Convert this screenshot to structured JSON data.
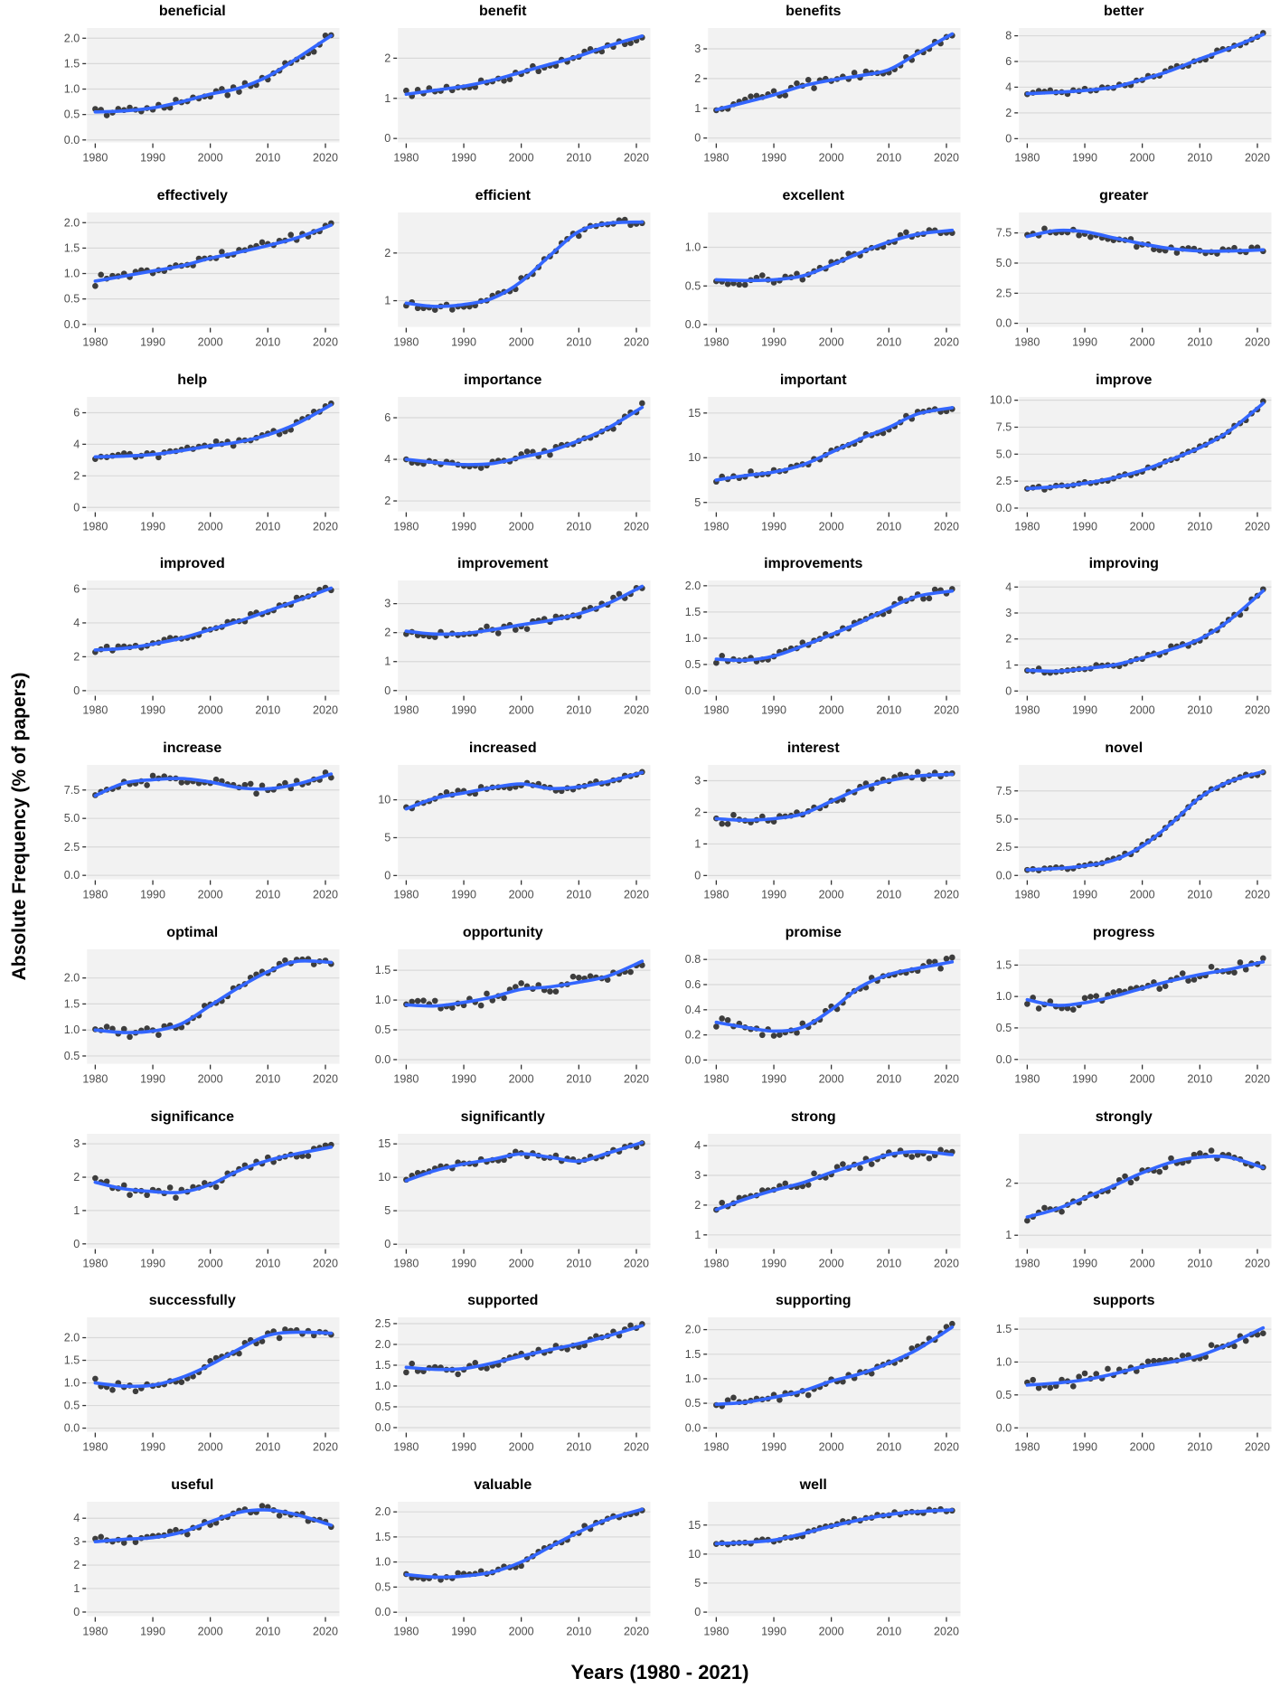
{
  "figure": {
    "ylabel": "Absolute Frequency (% of papers)",
    "xlabel": "Years (1980 - 2021)"
  },
  "style": {
    "point_color": "#2e2e2e",
    "line_color": "#3366FF",
    "panel_bg": "#f2f2f2",
    "grid_color": "#d9d9d9",
    "tick_label_color": "#4d4d4d",
    "tick_mark_color": "#333333"
  },
  "axis": {
    "x_domain": [
      1980,
      2021
    ],
    "x_ticks": [
      1980,
      1990,
      2000,
      2010,
      2020
    ],
    "trend_years": [
      1980,
      1985,
      1990,
      1995,
      2000,
      2005,
      2010,
      2015,
      2021
    ],
    "grid": "horizontal-major",
    "legend": "none"
  },
  "chart_data": [
    {
      "type": "scatter",
      "smoother": "loess",
      "title": "beneficial",
      "ylim": [
        -0.05,
        2.2
      ],
      "yticks": [
        0,
        0.5,
        1,
        1.5,
        2
      ],
      "ytick_labels": [
        "0.0",
        "0.5",
        "1.0",
        "1.5",
        "2.0"
      ],
      "trend": [
        0.55,
        0.57,
        0.63,
        0.75,
        0.9,
        1.02,
        1.25,
        1.6,
        2.05
      ],
      "noise": 0.08
    },
    {
      "type": "scatter",
      "smoother": "loess",
      "title": "benefit",
      "ylim": [
        -0.1,
        2.75
      ],
      "yticks": [
        0,
        1,
        2
      ],
      "ytick_labels": [
        "0",
        "1",
        "2"
      ],
      "trend": [
        1.1,
        1.2,
        1.3,
        1.45,
        1.65,
        1.85,
        2.05,
        2.3,
        2.55
      ],
      "noise": 0.1
    },
    {
      "type": "scatter",
      "smoother": "loess",
      "title": "benefits",
      "ylim": [
        -0.15,
        3.7
      ],
      "yticks": [
        0,
        1,
        2,
        3
      ],
      "ytick_labels": [
        "0",
        "1",
        "2",
        "3"
      ],
      "trend": [
        0.95,
        1.2,
        1.45,
        1.75,
        1.95,
        2.1,
        2.3,
        2.85,
        3.5
      ],
      "noise": 0.13
    },
    {
      "type": "scatter",
      "smoother": "loess",
      "title": "better",
      "ylim": [
        -0.3,
        8.6
      ],
      "yticks": [
        0,
        2,
        4,
        6,
        8
      ],
      "ytick_labels": [
        "0",
        "2",
        "4",
        "6",
        "8"
      ],
      "trend": [
        3.5,
        3.6,
        3.75,
        4.0,
        4.6,
        5.3,
        6.2,
        7.0,
        8.1
      ],
      "noise": 0.2
    },
    {
      "type": "scatter",
      "smoother": "loess",
      "title": "effectively",
      "ylim": [
        -0.05,
        2.2
      ],
      "yticks": [
        0,
        0.5,
        1,
        1.5,
        2
      ],
      "ytick_labels": [
        "0.0",
        "0.5",
        "1.0",
        "1.5",
        "2.0"
      ],
      "trend": [
        0.85,
        0.95,
        1.05,
        1.15,
        1.3,
        1.42,
        1.55,
        1.7,
        1.95
      ],
      "noise": 0.08
    },
    {
      "type": "scatter",
      "smoother": "loess",
      "title": "efficient",
      "ylim": [
        0.45,
        2.85
      ],
      "yticks": [
        1,
        2
      ],
      "ytick_labels": [
        "1",
        "2"
      ],
      "trend": [
        0.95,
        0.88,
        0.92,
        1.05,
        1.4,
        1.95,
        2.45,
        2.62,
        2.65
      ],
      "noise": 0.08
    },
    {
      "type": "scatter",
      "smoother": "loess",
      "title": "excellent",
      "ylim": [
        -0.03,
        1.45
      ],
      "yticks": [
        0,
        0.5,
        1
      ],
      "ytick_labels": [
        "0.0",
        "0.5",
        "1.0"
      ],
      "trend": [
        0.58,
        0.57,
        0.58,
        0.63,
        0.77,
        0.93,
        1.07,
        1.17,
        1.22
      ],
      "noise": 0.055
    },
    {
      "type": "scatter",
      "smoother": "loess",
      "title": "greater",
      "ylim": [
        -0.3,
        9.2
      ],
      "yticks": [
        0,
        2.5,
        5,
        7.5
      ],
      "ytick_labels": [
        "0.0",
        "2.5",
        "5.0",
        "7.5"
      ],
      "trend": [
        7.2,
        7.7,
        7.6,
        7.1,
        6.6,
        6.2,
        6.0,
        6.0,
        6.1
      ],
      "noise": 0.3
    },
    {
      "type": "scatter",
      "smoother": "loess",
      "title": "help",
      "ylim": [
        -0.25,
        7.0
      ],
      "yticks": [
        0,
        2,
        4,
        6
      ],
      "ytick_labels": [
        "0",
        "2",
        "4",
        "6"
      ],
      "trend": [
        3.2,
        3.25,
        3.35,
        3.6,
        3.9,
        4.15,
        4.6,
        5.3,
        6.5
      ],
      "noise": 0.2
    },
    {
      "type": "scatter",
      "smoother": "loess",
      "title": "importance",
      "ylim": [
        1.5,
        7.0
      ],
      "yticks": [
        2,
        4,
        6
      ],
      "ytick_labels": [
        "2",
        "4",
        "6"
      ],
      "trend": [
        4.0,
        3.85,
        3.75,
        3.8,
        4.1,
        4.4,
        4.9,
        5.5,
        6.5
      ],
      "noise": 0.16
    },
    {
      "type": "scatter",
      "smoother": "loess",
      "title": "important",
      "ylim": [
        4.0,
        16.8
      ],
      "yticks": [
        5,
        10,
        15
      ],
      "ytick_labels": [
        "5",
        "10",
        "15"
      ],
      "trend": [
        7.5,
        8.0,
        8.4,
        9.2,
        10.6,
        12.1,
        13.4,
        14.9,
        15.6
      ],
      "noise": 0.3
    },
    {
      "type": "scatter",
      "smoother": "loess",
      "title": "improve",
      "ylim": [
        -0.3,
        10.3
      ],
      "yticks": [
        0,
        2.5,
        5,
        7.5,
        10
      ],
      "ytick_labels": [
        "0.0",
        "2.5",
        "5.0",
        "7.5",
        "10.0"
      ],
      "trend": [
        1.8,
        2.0,
        2.3,
        2.8,
        3.5,
        4.5,
        5.6,
        7.1,
        9.7
      ],
      "noise": 0.2
    },
    {
      "type": "scatter",
      "smoother": "loess",
      "title": "improved",
      "ylim": [
        -0.25,
        6.5
      ],
      "yticks": [
        0,
        2,
        4,
        6
      ],
      "ytick_labels": [
        "0",
        "2",
        "4",
        "6"
      ],
      "trend": [
        2.4,
        2.5,
        2.75,
        3.1,
        3.6,
        4.1,
        4.7,
        5.3,
        6.05
      ],
      "noise": 0.17
    },
    {
      "type": "scatter",
      "smoother": "loess",
      "title": "improvement",
      "ylim": [
        -0.15,
        3.8
      ],
      "yticks": [
        0,
        1,
        2,
        3
      ],
      "ytick_labels": [
        "0",
        "1",
        "2",
        "3"
      ],
      "trend": [
        2.05,
        1.95,
        1.97,
        2.1,
        2.27,
        2.42,
        2.65,
        3.0,
        3.6
      ],
      "noise": 0.13
    },
    {
      "type": "scatter",
      "smoother": "loess",
      "title": "improvements",
      "ylim": [
        -0.08,
        2.1
      ],
      "yticks": [
        0,
        0.5,
        1,
        1.5,
        2
      ],
      "ytick_labels": [
        "0.0",
        "0.5",
        "1.0",
        "1.5",
        "2.0"
      ],
      "trend": [
        0.6,
        0.58,
        0.66,
        0.85,
        1.07,
        1.3,
        1.57,
        1.8,
        1.9
      ],
      "noise": 0.07
    },
    {
      "type": "scatter",
      "smoother": "loess",
      "title": "improving",
      "ylim": [
        -0.15,
        4.25
      ],
      "yticks": [
        0,
        1,
        2,
        3,
        4
      ],
      "ytick_labels": [
        "0",
        "1",
        "2",
        "3",
        "4"
      ],
      "trend": [
        0.8,
        0.76,
        0.86,
        1.0,
        1.27,
        1.6,
        2.0,
        2.7,
        3.85
      ],
      "noise": 0.1
    },
    {
      "type": "scatter",
      "smoother": "loess",
      "title": "increase",
      "ylim": [
        -0.35,
        9.7
      ],
      "yticks": [
        0,
        2.5,
        5,
        7.5
      ],
      "ytick_labels": [
        "0.0",
        "2.5",
        "5.0",
        "7.5"
      ],
      "trend": [
        7.0,
        8.1,
        8.4,
        8.5,
        8.2,
        7.7,
        7.6,
        8.0,
        8.9
      ],
      "noise": 0.35
    },
    {
      "type": "scatter",
      "smoother": "loess",
      "title": "increased",
      "ylim": [
        -0.5,
        14.6
      ],
      "yticks": [
        0,
        5,
        10
      ],
      "ytick_labels": [
        "0",
        "5",
        "10"
      ],
      "trend": [
        8.8,
        10.2,
        10.9,
        11.6,
        12.1,
        11.5,
        11.7,
        12.4,
        13.6
      ],
      "noise": 0.4
    },
    {
      "type": "scatter",
      "smoother": "loess",
      "title": "interest",
      "ylim": [
        -0.12,
        3.5
      ],
      "yticks": [
        0,
        1,
        2,
        3
      ],
      "ytick_labels": [
        "0",
        "1",
        "2",
        "3"
      ],
      "trend": [
        1.8,
        1.75,
        1.8,
        1.95,
        2.35,
        2.75,
        3.0,
        3.15,
        3.2
      ],
      "noise": 0.13
    },
    {
      "type": "scatter",
      "smoother": "loess",
      "title": "novel",
      "ylim": [
        -0.35,
        9.8
      ],
      "yticks": [
        0,
        2.5,
        5,
        7.5
      ],
      "ytick_labels": [
        "0.0",
        "2.5",
        "5.0",
        "7.5"
      ],
      "trend": [
        0.5,
        0.6,
        0.85,
        1.35,
        2.6,
        4.6,
        6.9,
        8.3,
        9.2
      ],
      "noise": 0.15
    },
    {
      "type": "scatter",
      "smoother": "loess",
      "title": "optimal",
      "ylim": [
        0.35,
        2.55
      ],
      "yticks": [
        0.5,
        1,
        1.5,
        2
      ],
      "ytick_labels": [
        "0.5",
        "1.0",
        "1.5",
        "2.0"
      ],
      "trend": [
        1.0,
        0.95,
        0.98,
        1.12,
        1.47,
        1.82,
        2.12,
        2.32,
        2.3
      ],
      "noise": 0.08
    },
    {
      "type": "scatter",
      "smoother": "loess",
      "title": "opportunity",
      "ylim": [
        -0.07,
        1.85
      ],
      "yticks": [
        0,
        0.5,
        1,
        1.5
      ],
      "ytick_labels": [
        "0.0",
        "0.5",
        "1.0",
        "1.5"
      ],
      "trend": [
        0.92,
        0.9,
        0.96,
        1.05,
        1.18,
        1.22,
        1.3,
        1.4,
        1.65
      ],
      "noise": 0.09
    },
    {
      "type": "scatter",
      "smoother": "loess",
      "title": "promise",
      "ylim": [
        -0.03,
        0.88
      ],
      "yticks": [
        0,
        0.2,
        0.4,
        0.6,
        0.8
      ],
      "ytick_labels": [
        "0.0",
        "0.2",
        "0.4",
        "0.6",
        "0.8"
      ],
      "trend": [
        0.3,
        0.26,
        0.23,
        0.26,
        0.4,
        0.58,
        0.68,
        0.73,
        0.78
      ],
      "noise": 0.04
    },
    {
      "type": "scatter",
      "smoother": "loess",
      "title": "progress",
      "ylim": [
        -0.07,
        1.75
      ],
      "yticks": [
        0,
        0.5,
        1,
        1.5
      ],
      "ytick_labels": [
        "0.0",
        "0.5",
        "1.0",
        "1.5"
      ],
      "trend": [
        0.95,
        0.86,
        0.9,
        1.0,
        1.13,
        1.25,
        1.35,
        1.43,
        1.55
      ],
      "noise": 0.08
    },
    {
      "type": "scatter",
      "smoother": "loess",
      "title": "significance",
      "ylim": [
        -0.13,
        3.3
      ],
      "yticks": [
        0,
        1,
        2,
        3
      ],
      "ytick_labels": [
        "0",
        "1",
        "2",
        "3"
      ],
      "trend": [
        1.85,
        1.65,
        1.57,
        1.55,
        1.78,
        2.2,
        2.5,
        2.7,
        2.9
      ],
      "noise": 0.15
    },
    {
      "type": "scatter",
      "smoother": "loess",
      "title": "significantly",
      "ylim": [
        -0.6,
        16.5
      ],
      "yticks": [
        0,
        5,
        10,
        15
      ],
      "ytick_labels": [
        "0",
        "5",
        "10",
        "15"
      ],
      "trend": [
        9.5,
        11.0,
        12.0,
        12.7,
        13.5,
        13.0,
        12.4,
        13.6,
        15.2
      ],
      "noise": 0.45
    },
    {
      "type": "scatter",
      "smoother": "loess",
      "title": "strong",
      "ylim": [
        0.55,
        4.4
      ],
      "yticks": [
        1,
        2,
        3,
        4
      ],
      "ytick_labels": [
        "1",
        "2",
        "3",
        "4"
      ],
      "trend": [
        1.85,
        2.2,
        2.5,
        2.75,
        3.1,
        3.4,
        3.7,
        3.8,
        3.7
      ],
      "noise": 0.17
    },
    {
      "type": "scatter",
      "smoother": "loess",
      "title": "strongly",
      "ylim": [
        0.75,
        2.95
      ],
      "yticks": [
        1,
        2
      ],
      "ytick_labels": [
        "1",
        "2"
      ],
      "trend": [
        1.35,
        1.5,
        1.72,
        1.95,
        2.2,
        2.4,
        2.5,
        2.5,
        2.3
      ],
      "noise": 0.1
    },
    {
      "type": "scatter",
      "smoother": "loess",
      "title": "successfully",
      "ylim": [
        -0.08,
        2.45
      ],
      "yticks": [
        0,
        0.5,
        1,
        1.5,
        2
      ],
      "ytick_labels": [
        "0.0",
        "0.5",
        "1.0",
        "1.5",
        "2.0"
      ],
      "trend": [
        1.0,
        0.93,
        0.95,
        1.12,
        1.4,
        1.75,
        2.05,
        2.12,
        2.1
      ],
      "noise": 0.1
    },
    {
      "type": "scatter",
      "smoother": "loess",
      "title": "supported",
      "ylim": [
        -0.1,
        2.65
      ],
      "yticks": [
        0,
        0.5,
        1,
        1.5,
        2,
        2.5
      ],
      "ytick_labels": [
        "0.0",
        "0.5",
        "1.0",
        "1.5",
        "2.0",
        "2.5"
      ],
      "trend": [
        1.45,
        1.4,
        1.42,
        1.55,
        1.72,
        1.87,
        2.02,
        2.2,
        2.45
      ],
      "noise": 0.1
    },
    {
      "type": "scatter",
      "smoother": "loess",
      "title": "supporting",
      "ylim": [
        -0.08,
        2.25
      ],
      "yticks": [
        0,
        0.5,
        1,
        1.5,
        2
      ],
      "ytick_labels": [
        "0.0",
        "0.5",
        "1.0",
        "1.5",
        "2.0"
      ],
      "trend": [
        0.48,
        0.52,
        0.62,
        0.75,
        0.95,
        1.1,
        1.32,
        1.6,
        2.05
      ],
      "noise": 0.09
    },
    {
      "type": "scatter",
      "smoother": "loess",
      "title": "supports",
      "ylim": [
        -0.06,
        1.68
      ],
      "yticks": [
        0,
        0.5,
        1,
        1.5
      ],
      "ytick_labels": [
        "0.0",
        "0.5",
        "1.0",
        "1.5"
      ],
      "trend": [
        0.65,
        0.68,
        0.73,
        0.82,
        0.93,
        1.0,
        1.1,
        1.27,
        1.52
      ],
      "noise": 0.09
    },
    {
      "type": "scatter",
      "smoother": "loess",
      "title": "useful",
      "ylim": [
        -0.18,
        4.7
      ],
      "yticks": [
        0,
        1,
        2,
        3,
        4
      ],
      "ytick_labels": [
        "0",
        "1",
        "2",
        "3",
        "4"
      ],
      "trend": [
        3.0,
        3.1,
        3.17,
        3.4,
        3.85,
        4.25,
        4.35,
        4.15,
        3.7
      ],
      "noise": 0.15
    },
    {
      "type": "scatter",
      "smoother": "loess",
      "title": "valuable",
      "ylim": [
        -0.08,
        2.2
      ],
      "yticks": [
        0,
        0.5,
        1,
        1.5,
        2
      ],
      "ytick_labels": [
        "0.0",
        "0.5",
        "1.0",
        "1.5",
        "2.0"
      ],
      "trend": [
        0.75,
        0.7,
        0.72,
        0.8,
        1.0,
        1.3,
        1.6,
        1.85,
        2.05
      ],
      "noise": 0.06
    },
    {
      "type": "scatter",
      "smoother": "loess",
      "title": "well",
      "ylim": [
        -0.7,
        19.0
      ],
      "yticks": [
        0,
        5,
        10,
        15
      ],
      "ytick_labels": [
        "0",
        "5",
        "10",
        "15"
      ],
      "trend": [
        11.8,
        12.0,
        12.4,
        13.5,
        14.8,
        15.9,
        16.8,
        17.3,
        17.6
      ],
      "noise": 0.35
    }
  ]
}
